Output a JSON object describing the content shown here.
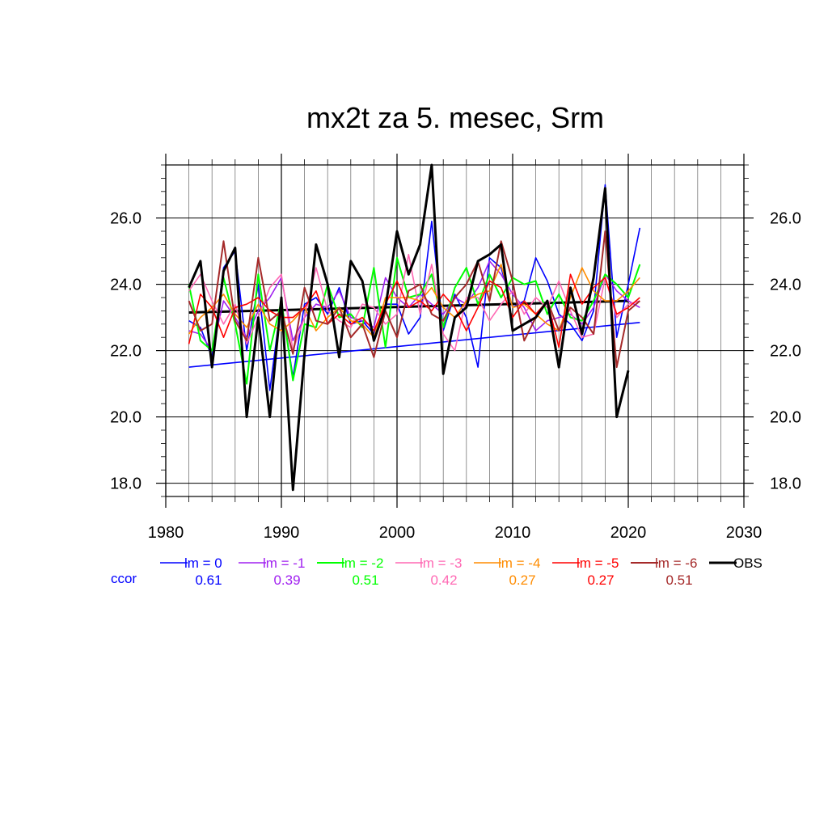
{
  "chart_data": {
    "type": "line",
    "title": "mx2t za 5. mesec, Srm",
    "xlim": [
      1980,
      2030
    ],
    "ylim": [
      17.6,
      27.6
    ],
    "xticks": [
      1980,
      1990,
      2000,
      2010,
      2020,
      2030
    ],
    "xtick_labels": [
      "1980",
      "1990",
      "2000",
      "2010",
      "2020",
      "2030"
    ],
    "yticks": [
      18,
      20,
      22,
      24,
      26
    ],
    "ytick_labels": [
      "18.0",
      "20.0",
      "22.0",
      "24.0",
      "26.0"
    ],
    "grid": true,
    "ccor_label": "ccor",
    "legend_position": "bottom",
    "series": [
      {
        "name": "lm = 0",
        "color": "#0000ff",
        "ccor": "0.61",
        "width": 1.6,
        "x": [
          1982,
          1983,
          1984,
          1985,
          1986,
          1987,
          1988,
          1989,
          1990,
          1991,
          1992,
          1993,
          1994,
          1995,
          1996,
          1997,
          1998,
          1999,
          2000,
          2001,
          2002,
          2003,
          2004,
          2005,
          2006,
          2007,
          2008,
          2009,
          2010,
          2011,
          2012,
          2013,
          2014,
          2015,
          2016,
          2017,
          2018,
          2019,
          2020,
          2021
        ],
        "y": [
          22.9,
          22.7,
          21.8,
          24.5,
          25.0,
          22.0,
          24.0,
          20.8,
          23.5,
          21.2,
          23.4,
          23.6,
          23.1,
          23.9,
          22.8,
          22.9,
          22.5,
          23.4,
          23.4,
          22.5,
          23.0,
          25.9,
          22.6,
          23.7,
          23.0,
          21.5,
          24.8,
          24.5,
          23.3,
          23.5,
          24.8,
          24.1,
          23.1,
          22.8,
          22.3,
          23.2,
          27.0,
          22.4,
          24.0,
          25.7
        ]
      },
      {
        "name": "lm = -1",
        "color": "#a020f0",
        "ccor": "0.39",
        "width": 1.6,
        "x": [
          1982,
          1983,
          1984,
          1985,
          1986,
          1987,
          1988,
          1989,
          1990,
          1991,
          1992,
          1993,
          1994,
          1995,
          1996,
          1997,
          1998,
          1999,
          2000,
          2001,
          2002,
          2003,
          2004,
          2005,
          2006,
          2007,
          2008,
          2009,
          2010,
          2011,
          2012,
          2013,
          2014,
          2015,
          2016,
          2017,
          2018,
          2019,
          2020,
          2021
        ],
        "y": [
          22.6,
          22.5,
          22.0,
          23.5,
          23.0,
          22.4,
          23.2,
          23.6,
          24.2,
          22.3,
          23.0,
          23.4,
          23.3,
          23.8,
          23.0,
          22.9,
          22.7,
          24.2,
          23.6,
          23.3,
          23.7,
          23.4,
          23.1,
          23.6,
          23.4,
          23.9,
          24.7,
          24.3,
          23.7,
          23.3,
          22.6,
          22.9,
          23.0,
          23.1,
          22.8,
          23.3,
          24.3,
          23.8,
          23.5,
          23.3
        ]
      },
      {
        "name": "lm = -2",
        "color": "#00ff00",
        "ccor": "0.51",
        "width": 2.0,
        "x": [
          1982,
          1983,
          1984,
          1985,
          1986,
          1987,
          1988,
          1989,
          1990,
          1991,
          1992,
          1993,
          1994,
          1995,
          1996,
          1997,
          1998,
          1999,
          2000,
          2001,
          2002,
          2003,
          2004,
          2005,
          2006,
          2007,
          2008,
          2009,
          2010,
          2011,
          2012,
          2013,
          2014,
          2015,
          2016,
          2017,
          2018,
          2019,
          2020,
          2021
        ],
        "y": [
          24.0,
          22.3,
          22.0,
          24.2,
          22.8,
          21.0,
          24.3,
          22.0,
          23.5,
          21.1,
          22.8,
          22.7,
          24.0,
          23.0,
          23.1,
          22.7,
          24.5,
          22.1,
          24.8,
          23.6,
          23.7,
          24.3,
          22.7,
          23.9,
          24.5,
          23.4,
          24.3,
          23.6,
          24.2,
          24.0,
          24.1,
          23.1,
          23.7,
          23.0,
          22.9,
          23.5,
          24.3,
          24.0,
          23.6,
          24.6
        ]
      },
      {
        "name": "lm = -3",
        "color": "#ff69b4",
        "ccor": "0.42",
        "width": 1.6,
        "x": [
          1982,
          1983,
          1984,
          1985,
          1986,
          1987,
          1988,
          1989,
          1990,
          1991,
          1992,
          1993,
          1994,
          1995,
          1996,
          1997,
          1998,
          1999,
          2000,
          2001,
          2002,
          2003,
          2004,
          2005,
          2006,
          2007,
          2008,
          2009,
          2010,
          2011,
          2012,
          2013,
          2014,
          2015,
          2016,
          2017,
          2018,
          2019,
          2020,
          2021
        ],
        "y": [
          23.8,
          24.3,
          23.5,
          22.8,
          23.4,
          22.2,
          23.0,
          23.9,
          24.3,
          22.0,
          23.0,
          24.5,
          23.2,
          22.9,
          22.7,
          23.4,
          23.3,
          22.8,
          23.1,
          24.9,
          23.1,
          24.6,
          22.5,
          22.0,
          23.6,
          23.6,
          22.9,
          23.4,
          23.8,
          23.1,
          23.6,
          23.3,
          24.1,
          23.2,
          22.4,
          22.5,
          24.2,
          23.0,
          23.4,
          23.5
        ]
      },
      {
        "name": "lm = -4",
        "color": "#ff8c00",
        "ccor": "0.27",
        "width": 1.6,
        "x": [
          1982,
          1983,
          1984,
          1985,
          1986,
          1987,
          1988,
          1989,
          1990,
          1991,
          1992,
          1993,
          1994,
          1995,
          1996,
          1997,
          1998,
          1999,
          2000,
          2001,
          2002,
          2003,
          2004,
          2005,
          2006,
          2007,
          2008,
          2009,
          2010,
          2011,
          2012,
          2013,
          2014,
          2015,
          2016,
          2017,
          2018,
          2019,
          2020,
          2021
        ],
        "y": [
          22.5,
          23.0,
          23.3,
          23.7,
          23.1,
          22.7,
          23.4,
          22.8,
          22.6,
          22.9,
          23.3,
          22.6,
          23.0,
          23.3,
          22.9,
          22.8,
          22.4,
          23.6,
          23.6,
          23.6,
          23.5,
          23.9,
          23.3,
          23.0,
          23.5,
          23.7,
          23.8,
          24.6,
          23.3,
          23.4,
          23.1,
          22.8,
          22.6,
          23.6,
          24.5,
          23.8,
          23.5,
          23.5,
          23.8,
          24.2
        ]
      },
      {
        "name": "lm = -5",
        "color": "#ff0000",
        "ccor": "0.27",
        "width": 1.6,
        "x": [
          1982,
          1983,
          1984,
          1985,
          1986,
          1987,
          1988,
          1989,
          1990,
          1991,
          1992,
          1993,
          1994,
          1995,
          1996,
          1997,
          1998,
          1999,
          2000,
          2001,
          2002,
          2003,
          2004,
          2005,
          2006,
          2007,
          2008,
          2009,
          2010,
          2011,
          2012,
          2013,
          2014,
          2015,
          2016,
          2017,
          2018,
          2019,
          2020,
          2021
        ],
        "y": [
          22.2,
          23.7,
          23.3,
          22.4,
          23.3,
          23.4,
          23.6,
          23.2,
          23.0,
          23.0,
          23.3,
          23.8,
          22.8,
          23.1,
          22.8,
          23.0,
          22.6,
          23.4,
          24.1,
          23.3,
          23.5,
          23.2,
          23.7,
          23.3,
          22.6,
          23.3,
          24.1,
          23.9,
          23.0,
          23.5,
          23.1,
          23.5,
          22.1,
          24.3,
          23.4,
          23.9,
          24.2,
          23.1,
          23.3,
          23.6
        ]
      },
      {
        "name": "lm = -6",
        "color": "#a52a2a",
        "ccor": "0.51",
        "width": 2.0,
        "x": [
          1982,
          1983,
          1984,
          1985,
          1986,
          1987,
          1988,
          1989,
          1990,
          1991,
          1992,
          1993,
          1994,
          1995,
          1996,
          1997,
          1998,
          1999,
          2000,
          2001,
          2002,
          2003,
          2004,
          2005,
          2006,
          2007,
          2008,
          2009,
          2010,
          2011,
          2012,
          2013,
          2014,
          2015,
          2016,
          2017,
          2018,
          2019,
          2020,
          2021
        ],
        "y": [
          23.5,
          22.6,
          22.8,
          25.3,
          22.9,
          22.3,
          24.8,
          22.9,
          23.2,
          21.9,
          23.9,
          22.9,
          22.8,
          23.3,
          22.4,
          22.8,
          21.8,
          23.2,
          22.4,
          23.8,
          24.0,
          23.1,
          22.9,
          23.6,
          24.0,
          24.7,
          23.5,
          25.3,
          24.1,
          22.3,
          23.0,
          23.5,
          22.6,
          23.3,
          23.0,
          22.5,
          25.6,
          21.5,
          23.2,
          23.5
        ]
      },
      {
        "name": "OBS",
        "color": "#000000",
        "ccor": "",
        "width": 3.0,
        "x": [
          1982,
          1983,
          1984,
          1985,
          1986,
          1987,
          1988,
          1989,
          1990,
          1991,
          1992,
          1993,
          1994,
          1995,
          1996,
          1997,
          1998,
          1999,
          2000,
          2001,
          2002,
          2003,
          2004,
          2005,
          2006,
          2007,
          2008,
          2009,
          2010,
          2011,
          2012,
          2013,
          2014,
          2015,
          2016,
          2017,
          2018,
          2019,
          2020
        ],
        "y": [
          23.9,
          24.7,
          21.5,
          24.4,
          25.1,
          20.0,
          23.0,
          20.0,
          23.6,
          17.8,
          21.9,
          25.2,
          24.0,
          21.8,
          24.7,
          24.1,
          22.3,
          23.3,
          25.6,
          24.3,
          25.2,
          27.6,
          21.3,
          23.0,
          23.3,
          24.7,
          24.9,
          25.2,
          22.6,
          22.8,
          23.0,
          23.5,
          21.5,
          23.9,
          22.5,
          24.2,
          26.9,
          20.0,
          21.4
        ]
      }
    ],
    "trend_lines": [
      {
        "name": "lm = 0 trend",
        "color": "#0000ff",
        "width": 1.6,
        "x": [
          1982,
          2021
        ],
        "y": [
          21.5,
          22.85
        ]
      },
      {
        "name": "OBS trend",
        "color": "#000000",
        "width": 3.0,
        "x": [
          1982,
          2020
        ],
        "y": [
          23.15,
          23.5
        ]
      }
    ]
  }
}
